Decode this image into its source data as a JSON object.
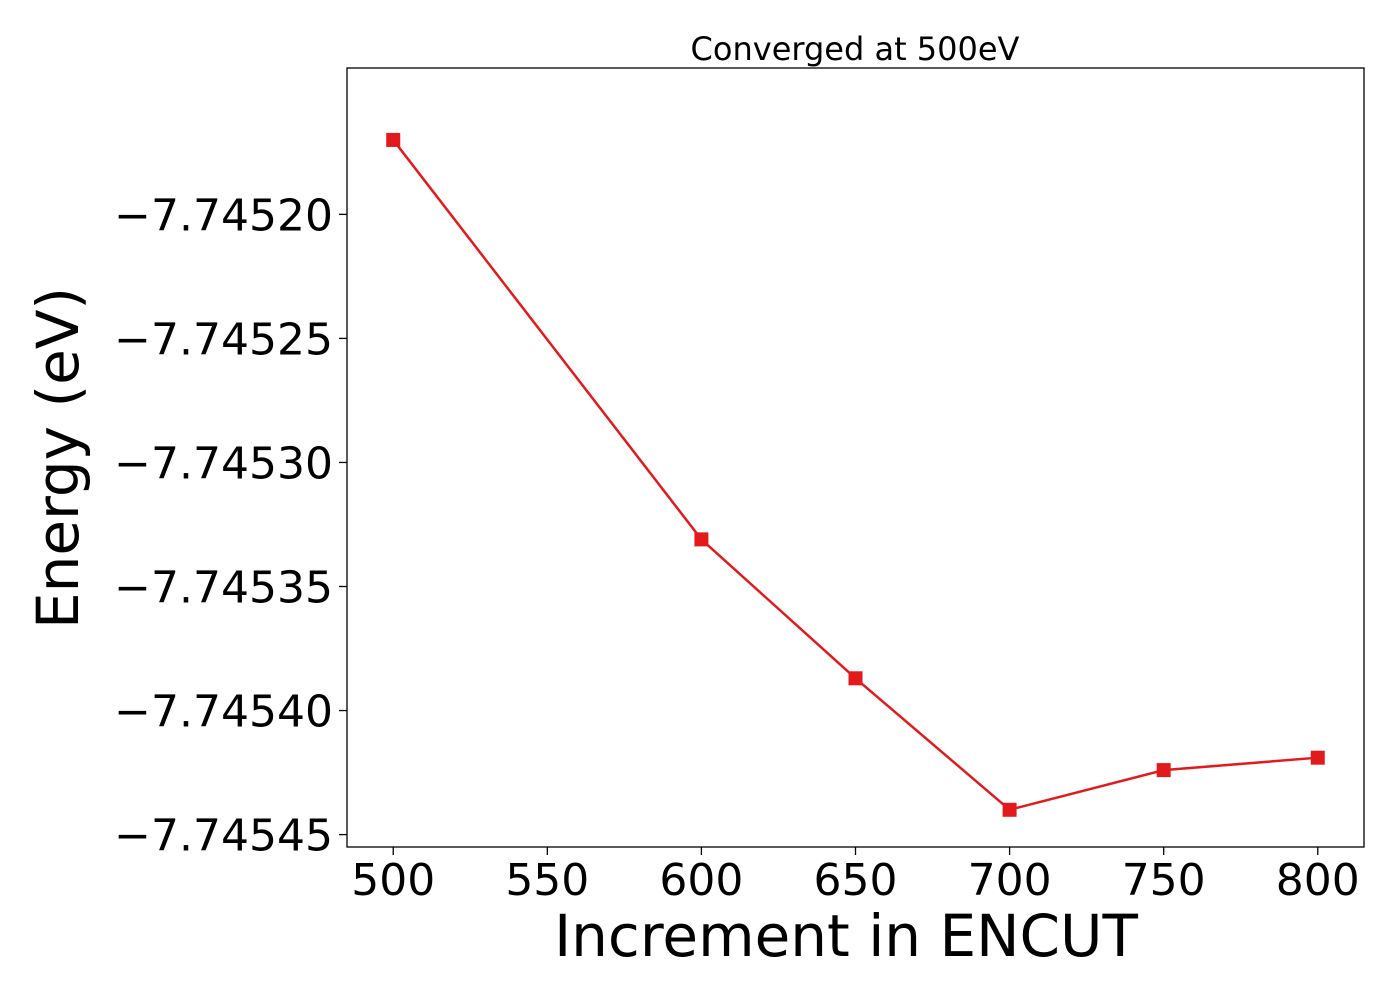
{
  "chart_data": {
    "type": "line",
    "title": "Converged at 500eV",
    "xlabel": "Increment in ENCUT",
    "ylabel": "Energy (eV)",
    "xlim": [
      485,
      815
    ],
    "ylim": [
      -7.745455,
      -7.745141
    ],
    "xticks": [
      500,
      550,
      600,
      650,
      700,
      750,
      800
    ],
    "xtick_labels": [
      "500",
      "550",
      "600",
      "650",
      "700",
      "750",
      "800"
    ],
    "yticks": [
      -7.7452,
      -7.74525,
      -7.7453,
      -7.74535,
      -7.7454,
      -7.74545
    ],
    "ytick_labels": [
      "−7.74520",
      "−7.74525",
      "−7.74530",
      "−7.74535",
      "−7.74540",
      "−7.74545"
    ],
    "grid": false,
    "series": [
      {
        "color": "#e31a1c",
        "marker": "square",
        "x": [
          500,
          600,
          650,
          700,
          750,
          800
        ],
        "y": [
          -7.74517,
          -7.745331,
          -7.745387,
          -7.74544,
          -7.745424,
          -7.745419
        ]
      }
    ]
  }
}
